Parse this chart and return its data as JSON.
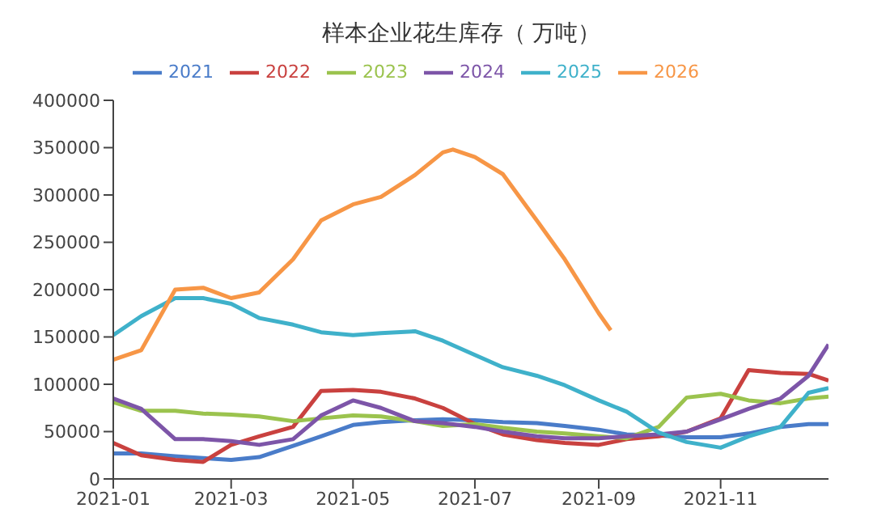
{
  "chart_data": {
    "type": "line",
    "title": "样本企业花生库存（ 万吨）",
    "x": [
      "2021-01-01",
      "2021-01-15",
      "2021-02-01",
      "2021-02-15",
      "2021-03-01",
      "2021-03-15",
      "2021-04-01",
      "2021-04-15",
      "2021-05-01",
      "2021-05-15",
      "2021-06-01",
      "2021-06-15",
      "2021-07-01",
      "2021-07-15",
      "2021-08-01",
      "2021-08-15",
      "2021-09-01",
      "2021-09-15",
      "2021-10-01",
      "2021-10-15",
      "2021-11-01",
      "2021-11-15",
      "2021-12-01",
      "2021-12-15",
      "2021-12-25"
    ],
    "series": [
      {
        "name": "2021",
        "color": "#4a7cc9",
        "values": [
          27000,
          27000,
          24000,
          22000,
          20000,
          23000,
          35000,
          45000,
          57000,
          60000,
          62000,
          63000,
          62000,
          60000,
          59000,
          56000,
          52000,
          47000,
          46000,
          44000,
          44000,
          48000,
          55000,
          58000,
          58000
        ]
      },
      {
        "name": "2022",
        "color": "#c9413f",
        "values": [
          38000,
          25000,
          20000,
          18000,
          36000,
          45000,
          55000,
          93000,
          94000,
          92000,
          85000,
          75000,
          58000,
          47000,
          41000,
          38000,
          36000,
          42000,
          45000,
          50000,
          64000,
          115000,
          112000,
          111000,
          104000
        ]
      },
      {
        "name": "2023",
        "color": "#9bc34e",
        "values": [
          81000,
          72000,
          72000,
          69000,
          68000,
          66000,
          61000,
          64000,
          67000,
          66000,
          61000,
          56000,
          58000,
          54000,
          50000,
          48000,
          45000,
          43000,
          55000,
          86000,
          90000,
          83000,
          80000,
          85000,
          87000
        ]
      },
      {
        "name": "2024",
        "color": "#7d55a8",
        "values": [
          85000,
          74000,
          42000,
          42000,
          40000,
          36000,
          42000,
          67000,
          83000,
          75000,
          61000,
          59000,
          55000,
          50000,
          45000,
          43000,
          43000,
          45000,
          47000,
          50000,
          63000,
          74000,
          85000,
          109000,
          142000
        ]
      },
      {
        "name": "2025",
        "color": "#3fb1ca",
        "values": [
          152000,
          172000,
          191000,
          191000,
          185000,
          170000,
          163000,
          155000,
          152000,
          154000,
          156000,
          146000,
          131000,
          118000,
          109000,
          99000,
          83000,
          71000,
          49000,
          39000,
          33000,
          45000,
          55000,
          91000,
          96000
        ]
      },
      {
        "name": "2026",
        "color": "#f79646",
        "x": [
          "2021-01-01",
          "2021-01-15",
          "2021-02-01",
          "2021-02-15",
          "2021-03-01",
          "2021-03-15",
          "2021-04-01",
          "2021-04-15",
          "2021-05-01",
          "2021-05-15",
          "2021-06-01",
          "2021-06-15",
          "2021-06-20",
          "2021-07-01",
          "2021-07-15",
          "2021-08-01",
          "2021-08-15",
          "2021-09-01",
          "2021-09-07"
        ],
        "values": [
          126000,
          136000,
          200000,
          202000,
          191000,
          197000,
          232000,
          273000,
          290000,
          298000,
          321000,
          345000,
          348000,
          340000,
          322000,
          273000,
          232000,
          175000,
          157000
        ]
      }
    ],
    "xlim": [
      "2021-01-01",
      "2021-12-25"
    ],
    "xticks": [
      "2021-01",
      "2021-03",
      "2021-05",
      "2021-07",
      "2021-09",
      "2021-11"
    ],
    "ylim": [
      0,
      400000
    ],
    "yticks": [
      0,
      50000,
      100000,
      150000,
      200000,
      250000,
      300000,
      350000,
      400000
    ],
    "grid": false,
    "legend": "top",
    "marker": "none",
    "line_style": "solid"
  }
}
